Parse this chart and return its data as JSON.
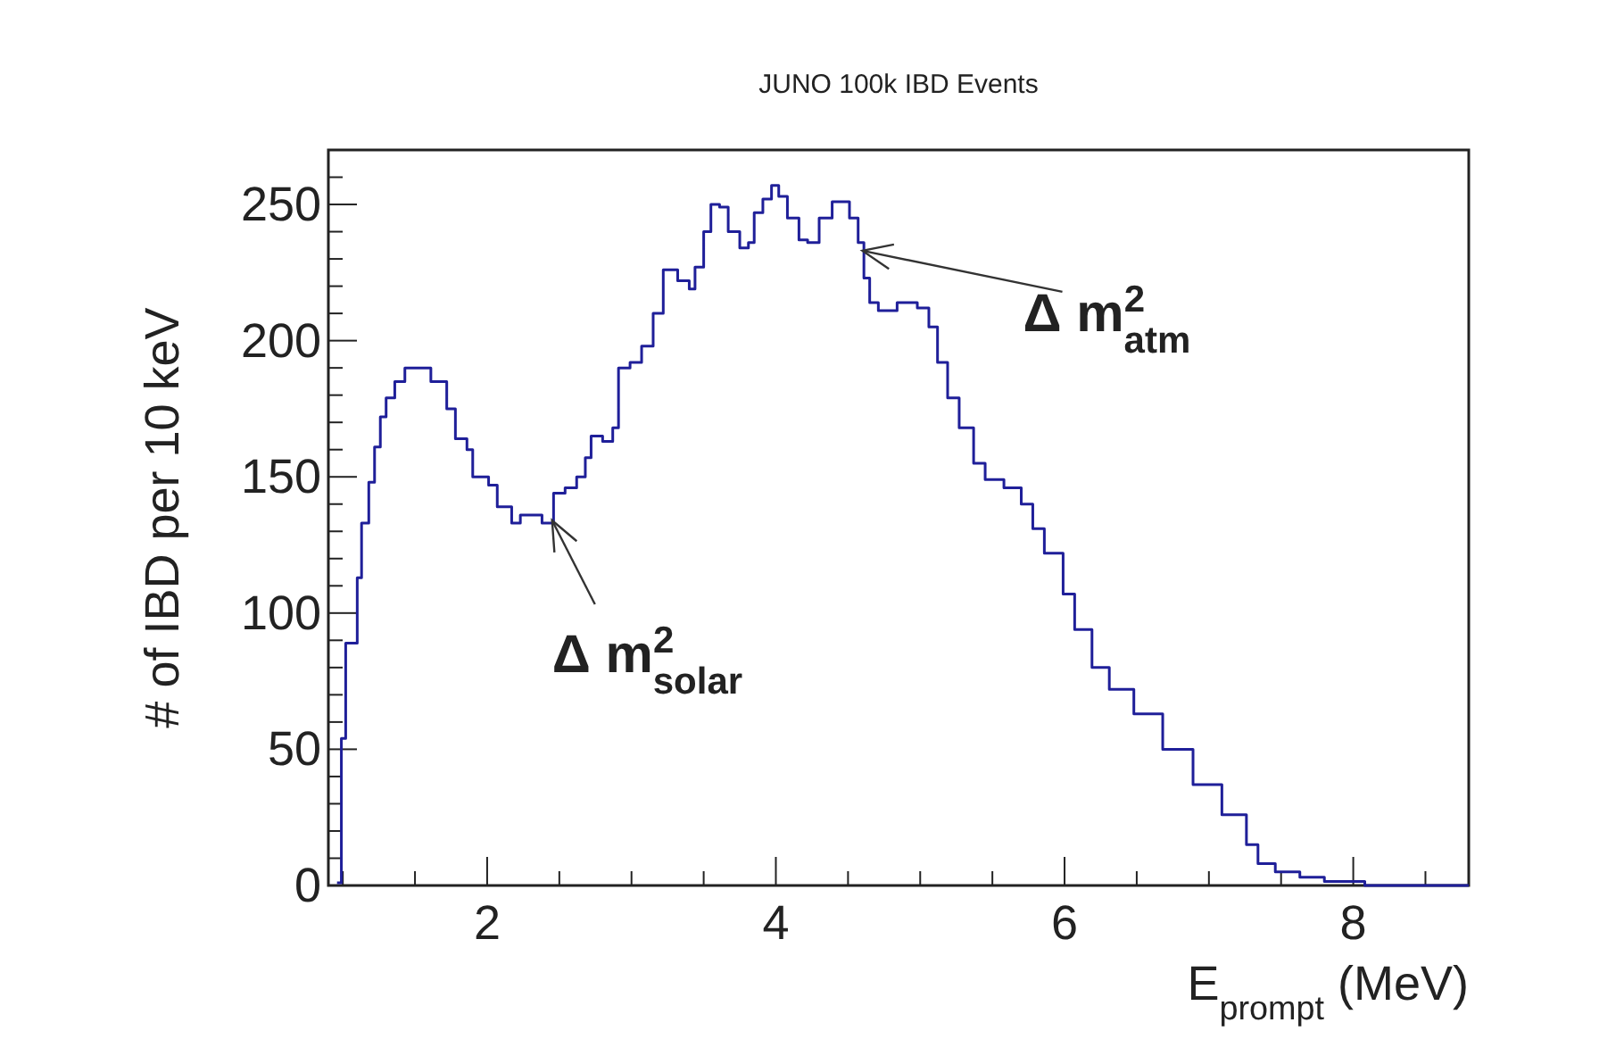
{
  "chart_data": {
    "type": "step",
    "title": "JUNO 100k IBD Events",
    "xlabel": "E$_{prompt}$ (MeV)",
    "ylabel": "# of IBD per 10 keV",
    "xlim": [
      0.9,
      8.8
    ],
    "ylim": [
      0,
      270
    ],
    "xticks": [
      {
        "value": 1,
        "label": null
      },
      {
        "value": 1.5,
        "label": null
      },
      2,
      {
        "value": 2.5,
        "label": null
      },
      {
        "value": 3,
        "label": null
      },
      {
        "value": 3.5,
        "label": null
      },
      4,
      {
        "value": 4.5,
        "label": null
      },
      {
        "value": 5,
        "label": null
      },
      {
        "value": 5.5,
        "label": null
      },
      6,
      {
        "value": 6.5,
        "label": null
      },
      {
        "value": 7,
        "label": null
      },
      {
        "value": 7.5,
        "label": null
      },
      8,
      {
        "value": 8.5,
        "label": null
      }
    ],
    "yticks": [
      0,
      {
        "value": 10,
        "label": null
      },
      {
        "value": 20,
        "label": null
      },
      {
        "value": 30,
        "label": null
      },
      {
        "value": 40,
        "label": null
      },
      50,
      {
        "value": 60,
        "label": null
      },
      {
        "value": 70,
        "label": null
      },
      {
        "value": 80,
        "label": null
      },
      {
        "value": 90,
        "label": null
      },
      100,
      {
        "value": 110,
        "label": null
      },
      {
        "value": 120,
        "label": null
      },
      {
        "value": 130,
        "label": null
      },
      {
        "value": 140,
        "label": null
      },
      150,
      {
        "value": 160,
        "label": null
      },
      {
        "value": 170,
        "label": null
      },
      {
        "value": 180,
        "label": null
      },
      {
        "value": 190,
        "label": null
      },
      200,
      {
        "value": 210,
        "label": null
      },
      {
        "value": 220,
        "label": null
      },
      {
        "value": 230,
        "label": null
      },
      {
        "value": 240,
        "label": null
      },
      250,
      {
        "value": 260,
        "label": null
      }
    ],
    "grid": false,
    "series": [
      {
        "color": "#1f1f99",
        "x": [
          0.96,
          0.99,
          1.02,
          1.1,
          1.13,
          1.18,
          1.22,
          1.26,
          1.3,
          1.36,
          1.43,
          1.55,
          1.61,
          1.72,
          1.78,
          1.86,
          1.9,
          2.01,
          2.07,
          2.17,
          2.23,
          2.29,
          2.38,
          2.46,
          2.54,
          2.62,
          2.68,
          2.72,
          2.8,
          2.87,
          2.91,
          2.99,
          3.07,
          3.15,
          3.22,
          3.32,
          3.4,
          3.44,
          3.5,
          3.55,
          3.61,
          3.67,
          3.75,
          3.81,
          3.85,
          3.91,
          3.97,
          4.02,
          4.08,
          4.16,
          4.22,
          4.3,
          4.39,
          4.45,
          4.51,
          4.57,
          4.61,
          4.65,
          4.71,
          4.84,
          4.98,
          5.06,
          5.12,
          5.19,
          5.27,
          5.37,
          5.45,
          5.58,
          5.7,
          5.78,
          5.86,
          5.99,
          6.07,
          6.19,
          6.31,
          6.48,
          6.68,
          6.89,
          7.09,
          7.26,
          7.34,
          7.46,
          7.63,
          7.8,
          8.08,
          8.8
        ],
        "values": [
          1,
          54,
          89,
          113,
          133,
          148,
          161,
          172,
          179,
          185,
          190,
          190,
          185,
          175,
          164,
          160,
          150,
          147,
          139,
          133,
          136,
          136,
          133,
          144,
          146,
          150,
          157,
          165,
          163,
          168,
          190,
          192,
          198,
          210,
          226,
          222,
          219,
          227,
          240,
          250,
          249,
          240,
          234,
          236,
          247,
          252,
          257,
          253,
          245,
          237,
          236,
          245,
          251,
          251,
          245,
          236,
          223,
          214,
          211,
          214,
          212,
          205,
          192,
          179,
          168,
          155,
          149,
          146,
          140,
          131,
          122,
          107,
          94,
          80,
          72,
          63,
          50,
          37,
          26,
          15,
          8,
          5,
          3,
          1.5,
          0,
          0
        ]
      }
    ],
    "annotations": [
      {
        "text": "Δ m$^{2}$$_{solar}$",
        "x": 2.45,
        "y": 134
      },
      {
        "text": "Δ m$^{2}$$_{atm}$",
        "x": 4.6,
        "y": 233
      }
    ]
  }
}
